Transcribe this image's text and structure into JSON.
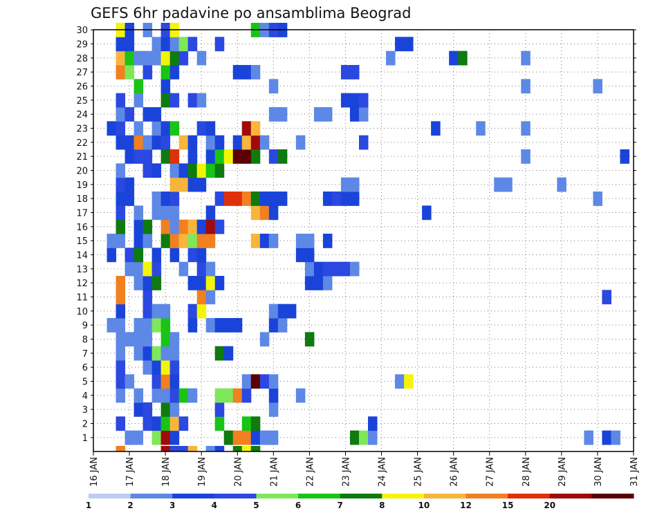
{
  "chart_data": {
    "type": "heatmap",
    "title": "GEFS 6hr padavine po ansamblima Beograd",
    "xlabel": "",
    "ylabel": "",
    "x_ticks": [
      "16 JAN",
      "17 JAN",
      "18 JAN",
      "19 JAN",
      "20 JAN",
      "21 JAN",
      "22 JAN",
      "23 JAN",
      "24 JAN",
      "25 JAN",
      "26 JAN",
      "27 JAN",
      "28 JAN",
      "29 JAN",
      "30 JAN",
      "31 JAN"
    ],
    "y_ticks": [
      "1",
      "2",
      "3",
      "4",
      "5",
      "6",
      "7",
      "8",
      "9",
      "10",
      "11",
      "12",
      "13",
      "14",
      "15",
      "16",
      "17",
      "18",
      "19",
      "20",
      "21",
      "22",
      "23",
      "24",
      "25",
      "26",
      "27",
      "28",
      "29",
      "30"
    ],
    "xlim": [
      "2025-01-16",
      "2025-01-31"
    ],
    "ylim": [
      0,
      30
    ],
    "grid": true,
    "colorbar": {
      "levels": [
        "1",
        "2",
        "3",
        "4",
        "5",
        "6",
        "7",
        "8",
        "10",
        "12",
        "15",
        "20"
      ],
      "colors": [
        "#bccdf2",
        "#5e88e6",
        "#1a44d9",
        "#2b48e0",
        "#7ee85a",
        "#19c416",
        "#0f7a0f",
        "#f4f40a",
        "#f7b53c",
        "#f08020",
        "#e0300a",
        "#a00a0a",
        "#5a0000"
      ]
    },
    "cells_description": "each cell = [member, step, category]; step = 6-hour interval index from 16 JAN 00Z; category index into colorbar.colors",
    "cells": [
      [
        1,
        4,
        1
      ],
      [
        1,
        5,
        1
      ],
      [
        1,
        7,
        4
      ],
      [
        1,
        8,
        11
      ],
      [
        1,
        9,
        2
      ],
      [
        1,
        15,
        6
      ],
      [
        1,
        16,
        9
      ],
      [
        1,
        17,
        9
      ],
      [
        1,
        18,
        2
      ],
      [
        1,
        19,
        1
      ],
      [
        1,
        20,
        1
      ],
      [
        1,
        29,
        6
      ],
      [
        1,
        30,
        4
      ],
      [
        1,
        31,
        1
      ],
      [
        1,
        55,
        1
      ],
      [
        1,
        57,
        2
      ],
      [
        1,
        58,
        1
      ],
      [
        2,
        3,
        3
      ],
      [
        2,
        6,
        3
      ],
      [
        2,
        7,
        2
      ],
      [
        2,
        8,
        5
      ],
      [
        2,
        9,
        8
      ],
      [
        2,
        10,
        3
      ],
      [
        2,
        14,
        5
      ],
      [
        2,
        17,
        5
      ],
      [
        2,
        18,
        6
      ],
      [
        2,
        31,
        2
      ],
      [
        3,
        5,
        2
      ],
      [
        3,
        6,
        3
      ],
      [
        3,
        8,
        6
      ],
      [
        3,
        9,
        1
      ],
      [
        3,
        14,
        3
      ],
      [
        3,
        20,
        1
      ],
      [
        4,
        3,
        1
      ],
      [
        4,
        5,
        1
      ],
      [
        4,
        7,
        1
      ],
      [
        4,
        8,
        1
      ],
      [
        4,
        9,
        3
      ],
      [
        4,
        10,
        5
      ],
      [
        4,
        11,
        1
      ],
      [
        4,
        14,
        4
      ],
      [
        4,
        15,
        4
      ],
      [
        4,
        16,
        9
      ],
      [
        4,
        17,
        3
      ],
      [
        4,
        20,
        2
      ],
      [
        4,
        23,
        1
      ],
      [
        5,
        3,
        3
      ],
      [
        5,
        4,
        1
      ],
      [
        5,
        7,
        3
      ],
      [
        5,
        8,
        9
      ],
      [
        5,
        9,
        2
      ],
      [
        5,
        17,
        1
      ],
      [
        5,
        18,
        12
      ],
      [
        5,
        19,
        3
      ],
      [
        5,
        20,
        1
      ],
      [
        5,
        34,
        1
      ],
      [
        5,
        35,
        7
      ],
      [
        6,
        3,
        3
      ],
      [
        6,
        6,
        1
      ],
      [
        6,
        7,
        2
      ],
      [
        6,
        8,
        7
      ],
      [
        6,
        9,
        3
      ],
      [
        7,
        3,
        1
      ],
      [
        7,
        5,
        1
      ],
      [
        7,
        6,
        2
      ],
      [
        7,
        7,
        4
      ],
      [
        7,
        8,
        1
      ],
      [
        7,
        9,
        1
      ],
      [
        7,
        14,
        6
      ],
      [
        7,
        15,
        2
      ],
      [
        8,
        3,
        1
      ],
      [
        8,
        4,
        1
      ],
      [
        8,
        5,
        1
      ],
      [
        8,
        6,
        1
      ],
      [
        8,
        8,
        5
      ],
      [
        8,
        9,
        1
      ],
      [
        8,
        19,
        1
      ],
      [
        8,
        24,
        6
      ],
      [
        9,
        2,
        1
      ],
      [
        9,
        3,
        1
      ],
      [
        9,
        5,
        1
      ],
      [
        9,
        6,
        1
      ],
      [
        9,
        7,
        4
      ],
      [
        9,
        8,
        5
      ],
      [
        9,
        11,
        2
      ],
      [
        9,
        13,
        1
      ],
      [
        9,
        14,
        2
      ],
      [
        9,
        15,
        2
      ],
      [
        9,
        16,
        2
      ],
      [
        9,
        20,
        2
      ],
      [
        9,
        21,
        1
      ],
      [
        10,
        3,
        2
      ],
      [
        10,
        6,
        3
      ],
      [
        10,
        7,
        1
      ],
      [
        10,
        8,
        1
      ],
      [
        10,
        11,
        3
      ],
      [
        10,
        12,
        7
      ],
      [
        10,
        20,
        1
      ],
      [
        10,
        21,
        2
      ],
      [
        10,
        22,
        2
      ],
      [
        11,
        3,
        9
      ],
      [
        11,
        6,
        3
      ],
      [
        11,
        12,
        9
      ],
      [
        11,
        13,
        1
      ],
      [
        11,
        57,
        3
      ],
      [
        12,
        3,
        9
      ],
      [
        12,
        5,
        1
      ],
      [
        12,
        6,
        2
      ],
      [
        12,
        7,
        6
      ],
      [
        12,
        11,
        2
      ],
      [
        12,
        12,
        2
      ],
      [
        12,
        13,
        7
      ],
      [
        12,
        14,
        2
      ],
      [
        12,
        24,
        2
      ],
      [
        12,
        25,
        2
      ],
      [
        12,
        26,
        1
      ],
      [
        13,
        4,
        1
      ],
      [
        13,
        5,
        1
      ],
      [
        13,
        6,
        7
      ],
      [
        13,
        7,
        3
      ],
      [
        13,
        10,
        1
      ],
      [
        13,
        12,
        3
      ],
      [
        13,
        13,
        1
      ],
      [
        13,
        24,
        1
      ],
      [
        13,
        25,
        2
      ],
      [
        13,
        26,
        3
      ],
      [
        13,
        27,
        3
      ],
      [
        13,
        28,
        3
      ],
      [
        13,
        29,
        1
      ],
      [
        14,
        2,
        2
      ],
      [
        14,
        4,
        3
      ],
      [
        14,
        5,
        6
      ],
      [
        14,
        7,
        2
      ],
      [
        14,
        9,
        2
      ],
      [
        14,
        11,
        3
      ],
      [
        14,
        12,
        2
      ],
      [
        14,
        23,
        2
      ],
      [
        14,
        24,
        2
      ],
      [
        15,
        2,
        1
      ],
      [
        15,
        3,
        1
      ],
      [
        15,
        5,
        2
      ],
      [
        15,
        6,
        1
      ],
      [
        15,
        8,
        6
      ],
      [
        15,
        9,
        9
      ],
      [
        15,
        10,
        8
      ],
      [
        15,
        11,
        4
      ],
      [
        15,
        12,
        9
      ],
      [
        15,
        13,
        9
      ],
      [
        15,
        18,
        8
      ],
      [
        15,
        19,
        2
      ],
      [
        15,
        20,
        1
      ],
      [
        15,
        23,
        1
      ],
      [
        15,
        24,
        1
      ],
      [
        15,
        26,
        2
      ],
      [
        16,
        3,
        6
      ],
      [
        16,
        5,
        2
      ],
      [
        16,
        6,
        6
      ],
      [
        16,
        8,
        9
      ],
      [
        16,
        9,
        1
      ],
      [
        16,
        10,
        9
      ],
      [
        16,
        11,
        8
      ],
      [
        16,
        12,
        2
      ],
      [
        16,
        13,
        11
      ],
      [
        16,
        14,
        3
      ],
      [
        17,
        3,
        3
      ],
      [
        17,
        5,
        1
      ],
      [
        17,
        7,
        1
      ],
      [
        17,
        8,
        1
      ],
      [
        17,
        9,
        1
      ],
      [
        17,
        13,
        2
      ],
      [
        17,
        18,
        8
      ],
      [
        17,
        19,
        9
      ],
      [
        17,
        20,
        2
      ],
      [
        17,
        37,
        2
      ],
      [
        18,
        3,
        2
      ],
      [
        18,
        4,
        2
      ],
      [
        18,
        7,
        1
      ],
      [
        18,
        8,
        2
      ],
      [
        18,
        9,
        3
      ],
      [
        18,
        14,
        3
      ],
      [
        18,
        15,
        10
      ],
      [
        18,
        16,
        10
      ],
      [
        18,
        17,
        9
      ],
      [
        18,
        18,
        6
      ],
      [
        18,
        19,
        2
      ],
      [
        18,
        20,
        2
      ],
      [
        18,
        21,
        2
      ],
      [
        18,
        26,
        2
      ],
      [
        18,
        27,
        3
      ],
      [
        18,
        28,
        2
      ],
      [
        18,
        29,
        2
      ],
      [
        18,
        56,
        1
      ],
      [
        19,
        3,
        3
      ],
      [
        19,
        4,
        2
      ],
      [
        19,
        9,
        8
      ],
      [
        19,
        10,
        8
      ],
      [
        19,
        11,
        2
      ],
      [
        19,
        12,
        2
      ],
      [
        19,
        28,
        1
      ],
      [
        19,
        29,
        1
      ],
      [
        19,
        45,
        1
      ],
      [
        19,
        46,
        1
      ],
      [
        19,
        52,
        1
      ],
      [
        20,
        3,
        1
      ],
      [
        20,
        6,
        3
      ],
      [
        20,
        7,
        2
      ],
      [
        20,
        9,
        1
      ],
      [
        20,
        10,
        2
      ],
      [
        20,
        11,
        6
      ],
      [
        20,
        12,
        7
      ],
      [
        20,
        13,
        5
      ],
      [
        20,
        14,
        6
      ],
      [
        21,
        4,
        2
      ],
      [
        21,
        5,
        3
      ],
      [
        21,
        6,
        3
      ],
      [
        21,
        8,
        6
      ],
      [
        21,
        9,
        10
      ],
      [
        21,
        11,
        2
      ],
      [
        21,
        13,
        2
      ],
      [
        21,
        14,
        5
      ],
      [
        21,
        15,
        7
      ],
      [
        21,
        16,
        12
      ],
      [
        21,
        17,
        12
      ],
      [
        21,
        18,
        6
      ],
      [
        21,
        20,
        3
      ],
      [
        21,
        21,
        6
      ],
      [
        21,
        48,
        1
      ],
      [
        21,
        59,
        2
      ],
      [
        22,
        3,
        2
      ],
      [
        22,
        4,
        2
      ],
      [
        22,
        5,
        9
      ],
      [
        22,
        6,
        1
      ],
      [
        22,
        7,
        2
      ],
      [
        22,
        8,
        3
      ],
      [
        22,
        10,
        8
      ],
      [
        22,
        11,
        2
      ],
      [
        22,
        13,
        1
      ],
      [
        22,
        14,
        2
      ],
      [
        22,
        16,
        2
      ],
      [
        22,
        17,
        8
      ],
      [
        22,
        18,
        11
      ],
      [
        22,
        19,
        1
      ],
      [
        22,
        23,
        1
      ],
      [
        22,
        30,
        3
      ],
      [
        23,
        2,
        2
      ],
      [
        23,
        3,
        3
      ],
      [
        23,
        5,
        1
      ],
      [
        23,
        7,
        1
      ],
      [
        23,
        8,
        2
      ],
      [
        23,
        9,
        5
      ],
      [
        23,
        12,
        3
      ],
      [
        23,
        13,
        2
      ],
      [
        23,
        17,
        11
      ],
      [
        23,
        18,
        8
      ],
      [
        23,
        38,
        2
      ],
      [
        23,
        43,
        1
      ],
      [
        23,
        48,
        1
      ],
      [
        24,
        3,
        1
      ],
      [
        24,
        4,
        3
      ],
      [
        24,
        6,
        2
      ],
      [
        24,
        7,
        2
      ],
      [
        24,
        20,
        1
      ],
      [
        24,
        21,
        1
      ],
      [
        24,
        25,
        1
      ],
      [
        24,
        26,
        1
      ],
      [
        24,
        29,
        2
      ],
      [
        24,
        30,
        1
      ],
      [
        25,
        3,
        3
      ],
      [
        25,
        5,
        1
      ],
      [
        25,
        8,
        6
      ],
      [
        25,
        9,
        3
      ],
      [
        25,
        11,
        3
      ],
      [
        25,
        12,
        1
      ],
      [
        25,
        28,
        2
      ],
      [
        25,
        29,
        2
      ],
      [
        25,
        30,
        3
      ],
      [
        26,
        5,
        5
      ],
      [
        26,
        8,
        2
      ],
      [
        26,
        20,
        1
      ],
      [
        26,
        48,
        1
      ],
      [
        26,
        56,
        1
      ],
      [
        27,
        3,
        9
      ],
      [
        27,
        4,
        4
      ],
      [
        27,
        6,
        3
      ],
      [
        27,
        8,
        5
      ],
      [
        27,
        9,
        2
      ],
      [
        27,
        16,
        2
      ],
      [
        27,
        17,
        2
      ],
      [
        27,
        18,
        1
      ],
      [
        27,
        28,
        3
      ],
      [
        27,
        29,
        3
      ],
      [
        28,
        3,
        8
      ],
      [
        28,
        4,
        5
      ],
      [
        28,
        5,
        1
      ],
      [
        28,
        6,
        1
      ],
      [
        28,
        7,
        1
      ],
      [
        28,
        8,
        7
      ],
      [
        28,
        9,
        6
      ],
      [
        28,
        10,
        3
      ],
      [
        28,
        12,
        1
      ],
      [
        28,
        33,
        1
      ],
      [
        28,
        40,
        2
      ],
      [
        28,
        41,
        6
      ],
      [
        28,
        48,
        1
      ],
      [
        29,
        3,
        2
      ],
      [
        29,
        4,
        2
      ],
      [
        29,
        7,
        1
      ],
      [
        29,
        8,
        2
      ],
      [
        29,
        9,
        1
      ],
      [
        29,
        10,
        4
      ],
      [
        29,
        11,
        3
      ],
      [
        29,
        14,
        3
      ],
      [
        29,
        34,
        2
      ],
      [
        29,
        35,
        2
      ],
      [
        30,
        3,
        7
      ],
      [
        30,
        4,
        2
      ],
      [
        30,
        6,
        1
      ],
      [
        30,
        8,
        3
      ],
      [
        30,
        9,
        7
      ],
      [
        30,
        18,
        5
      ],
      [
        30,
        19,
        1
      ],
      [
        30,
        20,
        3
      ],
      [
        30,
        21,
        2
      ]
    ],
    "bottom_row_marks": [
      [
        3,
        9
      ],
      [
        8,
        11
      ],
      [
        9,
        3
      ],
      [
        10,
        3
      ],
      [
        11,
        8
      ],
      [
        13,
        1
      ],
      [
        14,
        2
      ],
      [
        16,
        6
      ],
      [
        17,
        7
      ],
      [
        18,
        6
      ]
    ]
  }
}
